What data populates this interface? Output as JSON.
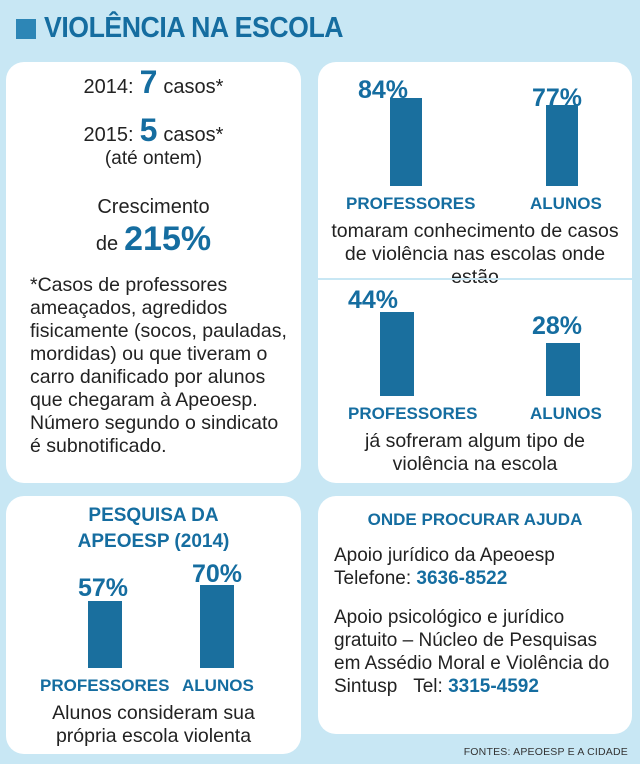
{
  "header": {
    "title": "VIOLÊNCIA NA ESCOLA"
  },
  "cases": {
    "y2014_label": "2014:",
    "y2014_value": "7",
    "y2014_unit": "casos*",
    "y2015_label": "2015:",
    "y2015_value": "5",
    "y2015_unit": "casos*",
    "y2015_note": "(até ontem)",
    "growth_line1": "Crescimento",
    "growth_prefix": "de",
    "growth_value": "215%",
    "footnote": "*Casos de professores ameaçados, agredidos fisicamente (socos, pauladas, mordidas) ou que tiveram o carro danificado por alunos que chegaram à Apeoesp. Número segundo o sindicato é subnotificado."
  },
  "chart_data": [
    {
      "type": "bar",
      "categories": [
        "PROFESSORES",
        "ALUNOS"
      ],
      "values": [
        84,
        77
      ],
      "labels": [
        "84%",
        "77%"
      ],
      "caption": "tomaram conhecimento de casos de violência nas escolas onde estão"
    },
    {
      "type": "bar",
      "categories": [
        "PROFESSORES",
        "ALUNOS"
      ],
      "values": [
        44,
        28
      ],
      "labels": [
        "44%",
        "28%"
      ],
      "caption": "já sofreram algum tipo de violência na escola"
    },
    {
      "type": "bar",
      "title": "PESQUISA DA APEOESP (2014)",
      "categories": [
        "PROFESSORES",
        "ALUNOS"
      ],
      "values": [
        57,
        70
      ],
      "labels": [
        "57%",
        "70%"
      ],
      "caption": "Alunos consideram sua própria escola violenta"
    }
  ],
  "survey_title_line1": "PESQUISA DA",
  "survey_title_line2": "APEOESP (2014)",
  "help": {
    "title": "ONDE PROCURAR AJUDA",
    "legal_text": "Apoio jurídico da  Apeoesp",
    "legal_phone_label": "Telefone:",
    "legal_phone": "3636-8522",
    "psych_text": "Apoio psicológico e jurídico gratuito – Núcleo de Pesquisas em Assédio Moral e Violência do Sintusp",
    "psych_phone_label": "Tel:",
    "psych_phone": "3315-4592"
  },
  "sources": "FONTES: APEOESP E A CIDADE",
  "colors": {
    "accent": "#156da0",
    "bar": "#1a6f9e",
    "background": "#c8e7f4"
  }
}
